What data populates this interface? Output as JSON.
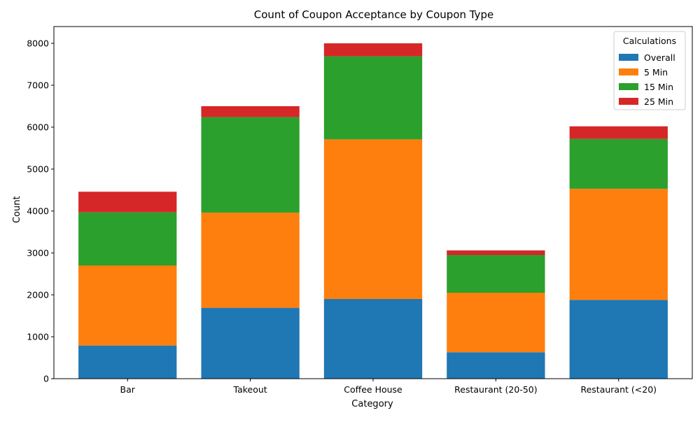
{
  "chart_data": {
    "type": "bar",
    "stacked": true,
    "title": "Count of Coupon Acceptance by Coupon Type",
    "xlabel": "Category",
    "ylabel": "Count",
    "ylim": [
      0,
      8400
    ],
    "yticks": [
      0,
      1000,
      2000,
      3000,
      4000,
      5000,
      6000,
      7000,
      8000
    ],
    "categories": [
      "Bar",
      "Takeout",
      "Coffee House",
      "Restaurant (20-50)",
      "Restaurant (<20)"
    ],
    "series": [
      {
        "name": "Overall",
        "color": "#1f77b4",
        "values": [
          790,
          1690,
          1900,
          630,
          1880
        ]
      },
      {
        "name": "5 Min",
        "color": "#ff7f0e",
        "values": [
          1910,
          2270,
          3810,
          1420,
          2650
        ]
      },
      {
        "name": "15 Min",
        "color": "#2ca02c",
        "values": [
          1270,
          2280,
          1980,
          900,
          1190
        ]
      },
      {
        "name": "25 Min",
        "color": "#d62728",
        "values": [
          490,
          260,
          310,
          110,
          300
        ]
      }
    ],
    "legend": {
      "title": "Calculations",
      "placement": "top-right"
    },
    "grid": false
  }
}
